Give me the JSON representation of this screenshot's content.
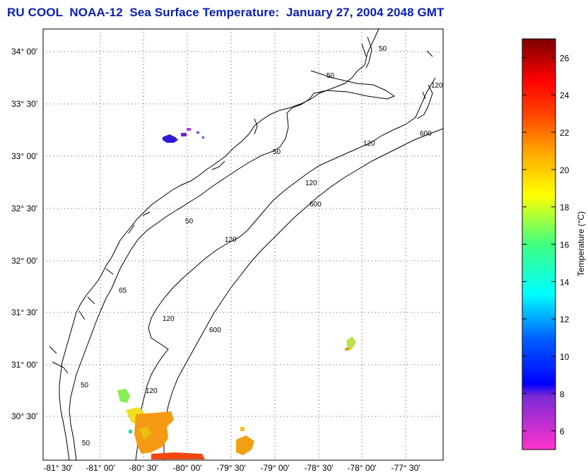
{
  "title": "RU COOL  NOAA-12  Sea Surface Temperature:  January 27, 2004 2048 GMT",
  "map": {
    "lat_labels": [
      "34° 00'",
      "33° 30'",
      "33° 00'",
      "32° 30'",
      "32° 00'",
      "31° 30'",
      "31° 00'",
      "30° 30'"
    ],
    "lon_labels": [
      "-81° 30'",
      "-81° 00'",
      "-80° 30'",
      "-80° 00'",
      "-79° 30'",
      "-79° 00'",
      "-78° 30'",
      "-78° 00'",
      "-77° 30'"
    ],
    "contour_labels": {
      "c50": "50",
      "c120": "120",
      "c600": "600",
      "c65": "65"
    }
  },
  "colorbar": {
    "label": "Temperature (°C)",
    "ticks": [
      "26",
      "24",
      "22",
      "20",
      "18",
      "16",
      "14",
      "12",
      "10",
      "8",
      "6"
    ],
    "range": [
      5,
      27
    ],
    "colors": {
      "low": "#ff33cc",
      "mid_low": "#0000ff",
      "mid": "#00ffff",
      "mid_high": "#ffff00",
      "high": "#ff0000",
      "top": "#800000"
    }
  }
}
